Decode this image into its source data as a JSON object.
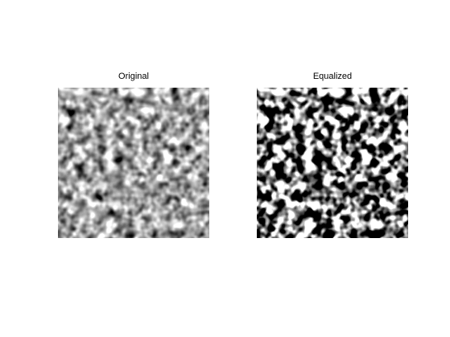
{
  "figure": {
    "panels": [
      {
        "title": "Original",
        "content": "grayscale noise texture",
        "contrast": "low"
      },
      {
        "title": "Equalized",
        "content": "histogram-equalized grayscale noise texture",
        "contrast": "high"
      }
    ]
  }
}
